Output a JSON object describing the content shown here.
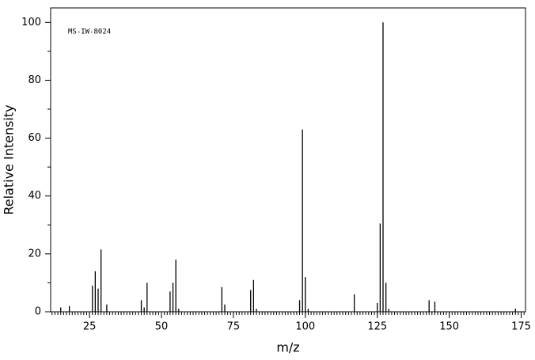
{
  "chart_data": {
    "type": "bar",
    "annotation": "MS-IW-8024",
    "x_label": "m/z",
    "y_label": "Relative Intensity",
    "x": [
      15,
      18,
      26,
      27,
      28,
      29,
      31,
      43,
      44,
      45,
      53,
      54,
      55,
      56,
      71,
      72,
      81,
      82,
      83,
      98,
      99,
      100,
      101,
      117,
      125,
      126,
      127,
      128,
      129,
      143,
      145,
      173
    ],
    "values": [
      1.5,
      2,
      9,
      14,
      8,
      21.5,
      2.5,
      4,
      1.5,
      10,
      7,
      10,
      18,
      1,
      8.5,
      2.5,
      7.5,
      11,
      1,
      4,
      63,
      12,
      1,
      6,
      3,
      30.5,
      100,
      10,
      1,
      4,
      3.5,
      1
    ],
    "color": "#000000",
    "xlim": [
      11.5,
      176.5
    ],
    "xticks": [
      25,
      50,
      75,
      100,
      125,
      150,
      175
    ],
    "ylim": [
      0,
      105
    ],
    "yticks": [
      0,
      20,
      40,
      60,
      80,
      100
    ]
  }
}
